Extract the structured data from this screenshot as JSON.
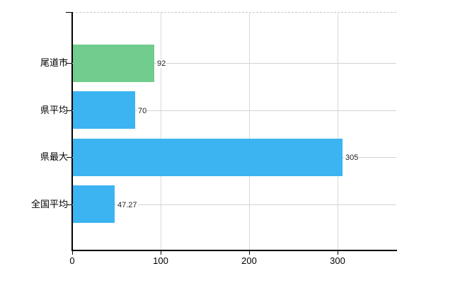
{
  "chart_data": {
    "type": "bar",
    "orientation": "horizontal",
    "title": "",
    "xlabel": "",
    "ylabel": "",
    "categories": [
      "尾道市",
      "県平均",
      "県最大",
      "全国平均"
    ],
    "values": [
      92,
      70,
      305,
      47.27
    ],
    "value_labels": [
      "92",
      "70",
      "305",
      "47.27"
    ],
    "x_ticks": [
      0,
      100,
      200,
      300
    ],
    "x_tick_labels": [
      "0",
      "100",
      "200",
      "300"
    ],
    "xlim": [
      0,
      366
    ],
    "grid": true,
    "legend": false,
    "colors": {
      "bar_colors": [
        "#70CD8E",
        "#3BB4F1",
        "#3BB4F1",
        "#3BB4F1"
      ],
      "bar_highlight": "#70CD8E",
      "bar_default": "#3BB4F1",
      "axis": "#000000",
      "grid_vertical": "#d9d9d9",
      "grid_horizontal": "#ccd6cc",
      "plot_border_dashed": "#c8c8c8",
      "value_label_text": "#222222",
      "tick_label_text": "#000000",
      "background": "#ffffff"
    }
  }
}
